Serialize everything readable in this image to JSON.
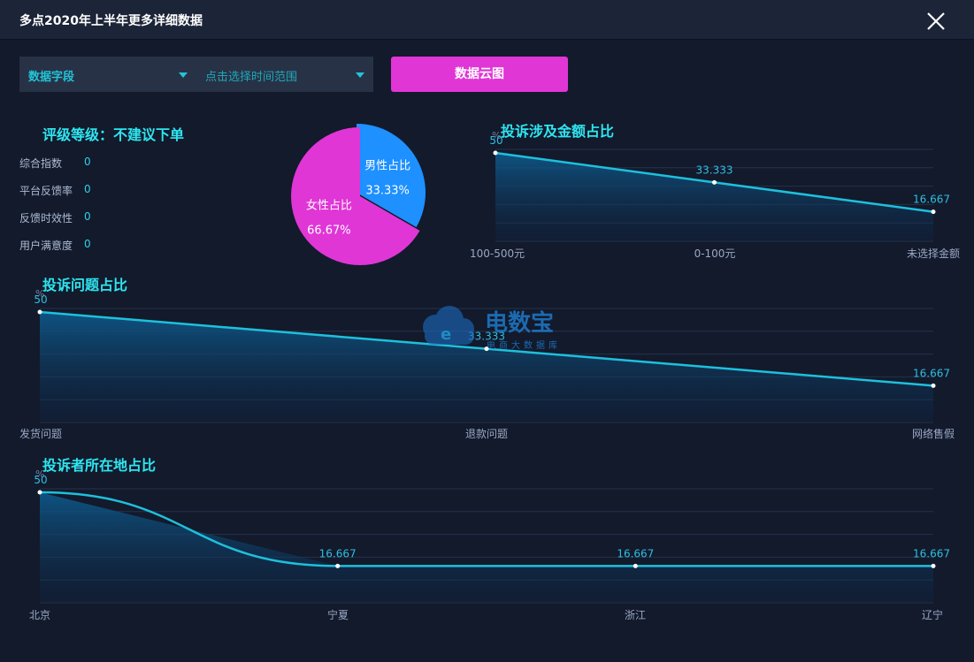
{
  "window": {
    "title": "多点2020年上半年更多详细数据"
  },
  "filters": {
    "field_label": "数据字段",
    "time_placeholder": "点击选择时间范围",
    "cloud_button": "数据云图"
  },
  "rating": {
    "title": "评级等级：不建议下单",
    "metrics": [
      {
        "label": "综合指数",
        "value": "0"
      },
      {
        "label": "平台反馈率",
        "value": "0"
      },
      {
        "label": "反馈时效性",
        "value": "0"
      },
      {
        "label": "用户满意度",
        "value": "0"
      }
    ]
  },
  "watermark": {
    "text": "电数宝",
    "sub": "电商大数据库"
  },
  "colors": {
    "accent": "#2ee6f0",
    "button": "#e036d6",
    "male": "#1e90ff",
    "female": "#e036d6",
    "line": "#1ec0dc"
  },
  "chart_data": [
    {
      "type": "pie",
      "slices": [
        {
          "name": "男性占比",
          "value": 33.33,
          "label": "33.33%"
        },
        {
          "name": "女性占比",
          "value": 66.67,
          "label": "66.67%"
        }
      ]
    },
    {
      "type": "area",
      "title": "投诉涉及金额占比",
      "ylabel": "%",
      "ylim": [
        0,
        50
      ],
      "categories": [
        "100-500元",
        "0-100元",
        "未选择金额"
      ],
      "values": [
        50,
        33.333,
        16.667
      ],
      "labels": [
        "50",
        "33.333",
        "16.667"
      ]
    },
    {
      "type": "area",
      "title": "投诉问题占比",
      "ylabel": "%",
      "ylim": [
        0,
        50
      ],
      "categories": [
        "发货问题",
        "退款问题",
        "网络售假"
      ],
      "values": [
        50,
        33.333,
        16.667
      ],
      "labels": [
        "50",
        "33.333",
        "16.667"
      ]
    },
    {
      "type": "area",
      "title": "投诉者所在地占比",
      "ylabel": "%",
      "ylim": [
        0,
        50
      ],
      "categories": [
        "北京",
        "宁夏",
        "浙江",
        "辽宁"
      ],
      "values": [
        50,
        16.667,
        16.667,
        16.667
      ],
      "labels": [
        "50",
        "16.667",
        "16.667",
        "16.667"
      ]
    }
  ]
}
